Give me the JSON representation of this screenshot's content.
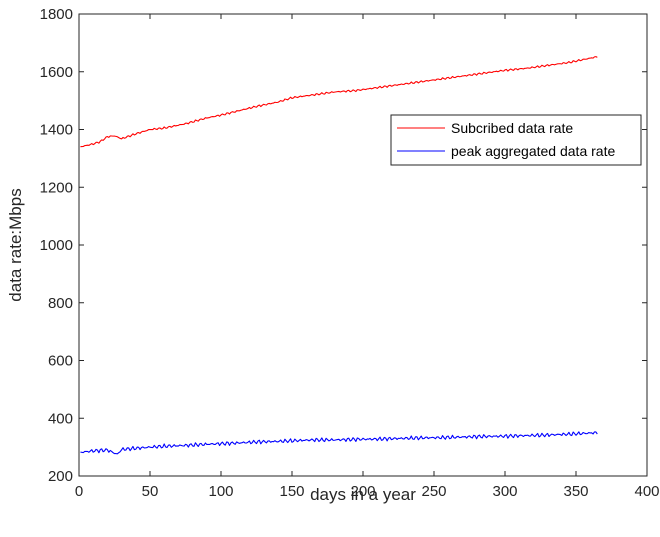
{
  "chart_data": {
    "type": "line",
    "title": "",
    "xlabel": "days in a year",
    "ylabel": "data rate:Mbps",
    "xlim": [
      0,
      400
    ],
    "ylim": [
      200,
      1800
    ],
    "xticks": [
      0,
      50,
      100,
      150,
      200,
      250,
      300,
      350,
      400
    ],
    "yticks": [
      200,
      400,
      600,
      800,
      1000,
      1200,
      1400,
      1600,
      1800
    ],
    "grid": false,
    "legend_position": "upper-right",
    "series": [
      {
        "name": "Subcribed data rate",
        "color": "#ff0000",
        "x": [
          1,
          10,
          15,
          20,
          25,
          30,
          40,
          50,
          60,
          75,
          90,
          100,
          110,
          125,
          140,
          150,
          165,
          180,
          195,
          210,
          225,
          240,
          255,
          270,
          285,
          300,
          315,
          330,
          345,
          365
        ],
        "y": [
          1340,
          1350,
          1358,
          1375,
          1378,
          1368,
          1385,
          1400,
          1405,
          1420,
          1440,
          1450,
          1462,
          1480,
          1495,
          1510,
          1520,
          1530,
          1535,
          1545,
          1555,
          1565,
          1575,
          1585,
          1595,
          1605,
          1612,
          1622,
          1632,
          1652
        ]
      },
      {
        "name": "peak aggregated data rate",
        "color": "#0000ff",
        "x": [
          1,
          10,
          20,
          27,
          30,
          40,
          50,
          60,
          75,
          90,
          100,
          110,
          125,
          140,
          150,
          165,
          180,
          195,
          210,
          225,
          240,
          255,
          270,
          285,
          300,
          315,
          330,
          345,
          365
        ],
        "y": [
          282,
          287,
          290,
          275,
          292,
          296,
          300,
          303,
          306,
          310,
          312,
          314,
          318,
          320,
          322,
          325,
          325,
          327,
          328,
          330,
          332,
          333,
          335,
          337,
          338,
          340,
          342,
          345,
          350
        ]
      }
    ]
  }
}
